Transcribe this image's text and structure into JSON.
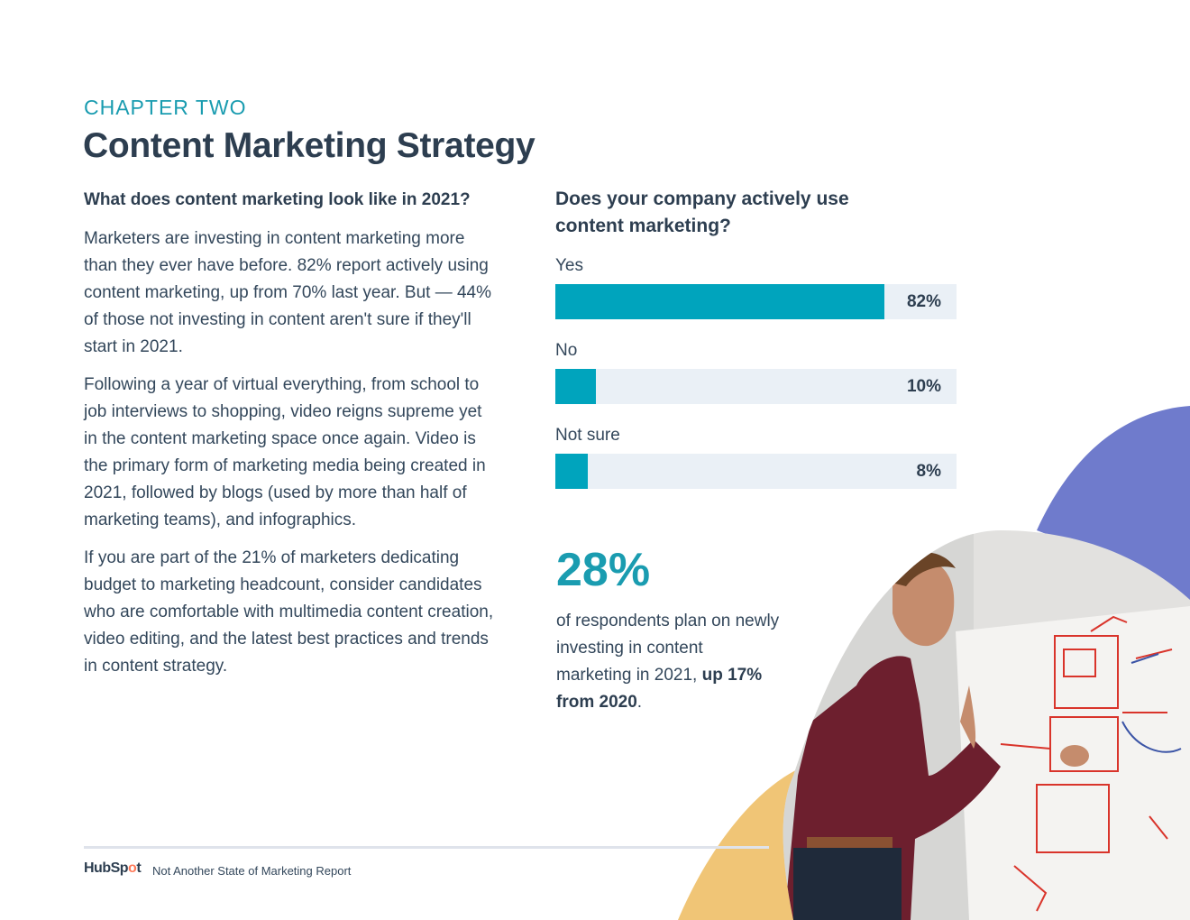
{
  "header": {
    "chapter": "CHAPTER TWO",
    "title": "Content Marketing Strategy"
  },
  "article": {
    "subhead": "What does content marketing look like in 2021?",
    "paragraphs": [
      "Marketers are investing in content marketing more than they ever have before. 82% report actively using content marketing, up from 70% last year. But — 44% of those not investing in content aren't sure if they'll start in 2021.",
      "Following a year of virtual everything, from school to job interviews to shopping, video reigns supreme yet in the content marketing space once again. Video is the primary form of marketing media being created in 2021, followed by blogs (used by more than half of marketing teams), and infographics.",
      "If you are part of the 21% of marketers dedicating budget to marketing headcount, consider candidates who are comfortable with multimedia content creation, video editing, and the latest best practices and trends in content strategy."
    ]
  },
  "chart_data": {
    "type": "bar",
    "orientation": "horizontal",
    "title": "Does your company actively use content marketing?",
    "categories": [
      "Yes",
      "No",
      "Not sure"
    ],
    "values": [
      82,
      10,
      8
    ],
    "value_labels": [
      "82%",
      "10%",
      "8%"
    ],
    "xlim": [
      0,
      100
    ],
    "bar_color": "#00a4bd",
    "track_color": "#eaf0f6"
  },
  "stat": {
    "value": "28%",
    "text": "of respondents plan on newly investing in content marketing in 2021, ",
    "emphasis": "up 17% from 2020",
    "suffix": "."
  },
  "footer": {
    "logo_text": "HubSp",
    "logo_dot": "o",
    "logo_end": "t",
    "report_name": "Not Another State of Marketing Report"
  },
  "colors": {
    "accent": "#00a4bd",
    "heading": "#2d3e50",
    "blob_purple": "#6f7bcc",
    "blob_yellow": "#f0c576"
  }
}
